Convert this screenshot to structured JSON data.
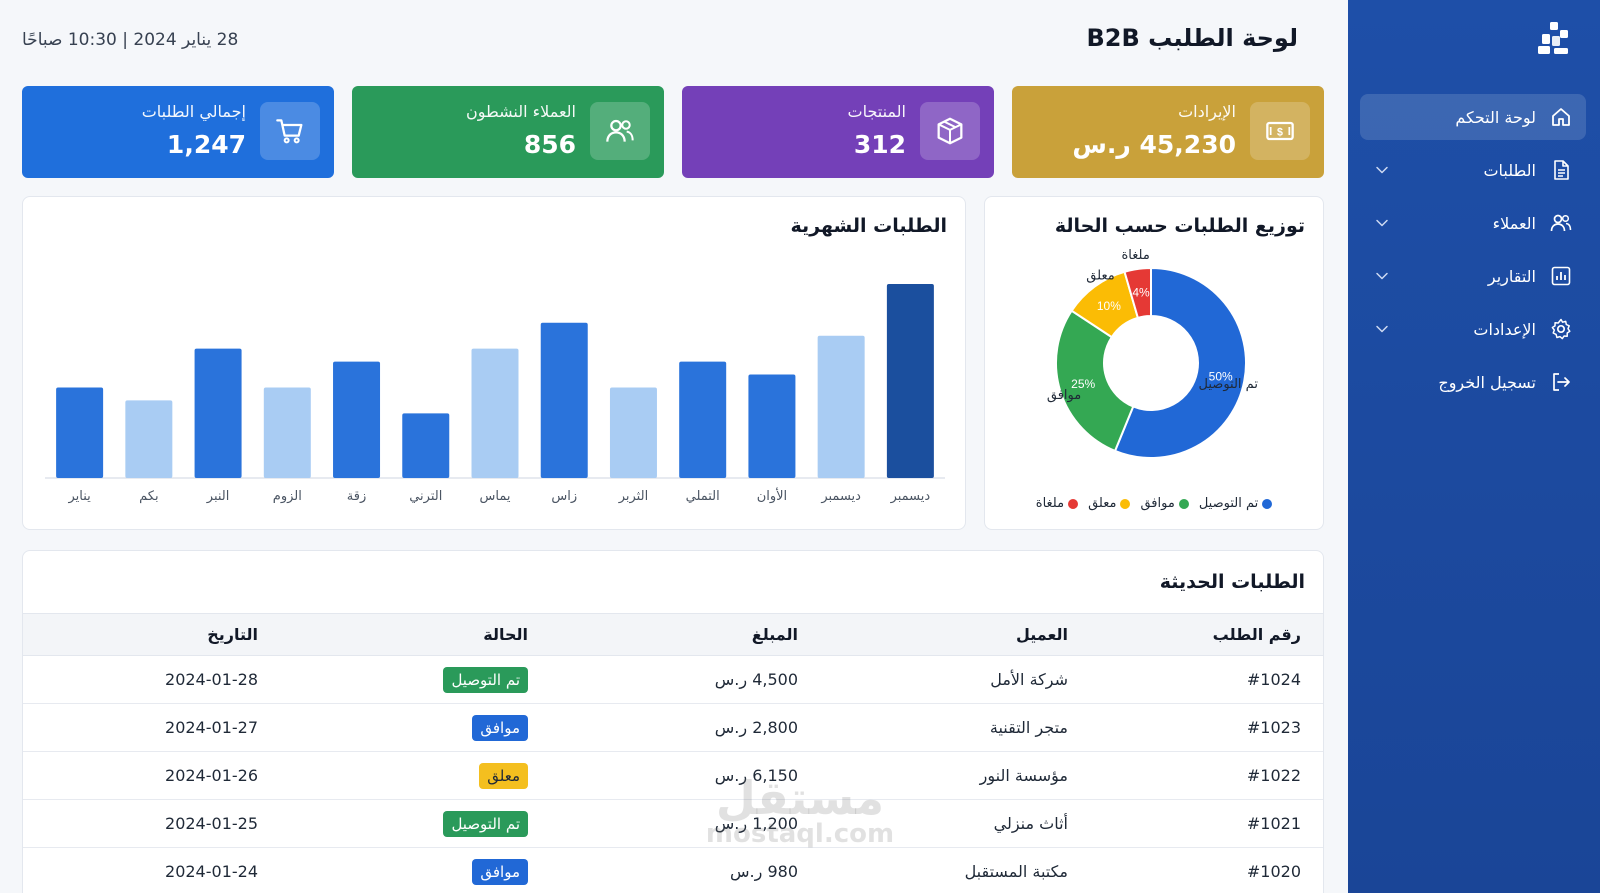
{
  "header": {
    "title": "لوحة الطلبب B2B",
    "datetime": "28 يناير 2024 | 10:30 صباحًا"
  },
  "sidebar": {
    "items": [
      {
        "label": "لوحة التحكم",
        "icon": "home-icon",
        "active": true,
        "chevron": false
      },
      {
        "label": "الطلبات",
        "icon": "document-icon",
        "active": false,
        "chevron": true
      },
      {
        "label": "العملاء",
        "icon": "users-icon",
        "active": false,
        "chevron": true
      },
      {
        "label": "التقارير",
        "icon": "bar-chart-icon",
        "active": false,
        "chevron": true
      },
      {
        "label": "الإعدادات",
        "icon": "gear-icon",
        "active": false,
        "chevron": true
      },
      {
        "label": "تسجيل الخروج",
        "icon": "logout-icon",
        "active": false,
        "chevron": false
      }
    ]
  },
  "stats": [
    {
      "label": "الإيرادات",
      "value": "45,230 ر.س",
      "icon": "money-icon",
      "color": "#c9a13a"
    },
    {
      "label": "المنتجات",
      "value": "312",
      "icon": "box-icon",
      "color": "#7440b8"
    },
    {
      "label": "العملاء النشطون",
      "value": "856",
      "icon": "users-icon",
      "color": "#2a9a5a"
    },
    {
      "label": "إجمالي الطلبات",
      "value": "1,247",
      "icon": "cart-icon",
      "color": "#1f6fdc"
    }
  ],
  "pie_panel": {
    "title": "توزيع الطلبات حسب الحالة",
    "legend": [
      {
        "label": "تم التوصيل",
        "color": "#2168d6"
      },
      {
        "label": "موافق",
        "color": "#34a853"
      },
      {
        "label": "معلق",
        "color": "#fbbc05"
      },
      {
        "label": "ملغاة",
        "color": "#e53935"
      }
    ]
  },
  "bar_panel": {
    "title": "الطلبات الشهرية"
  },
  "chart_data": [
    {
      "type": "pie",
      "title": "توزيع الطلبات حسب الحالة",
      "slices": [
        {
          "label": "تم التوصيل",
          "value": 50,
          "display": "50%",
          "color": "#2168d6"
        },
        {
          "label": "موافق",
          "value": 25,
          "display": "25%",
          "color": "#34a853"
        },
        {
          "label": "معلق",
          "value": 10,
          "display": "10%",
          "color": "#fbbc05"
        },
        {
          "label": "ملغاة",
          "value": 4,
          "display": "4%",
          "color": "#e53935"
        }
      ],
      "donut": true,
      "legend_position": "bottom"
    },
    {
      "type": "bar",
      "title": "الطلبات الشهرية",
      "categories": [
        "يناير",
        "بكم",
        "النبر",
        "الزوم",
        "زقة",
        "الترني",
        "يماس",
        "زاس",
        "الثربر",
        "التملي",
        "الأوان",
        "ديسمبر",
        "ديسمبر"
      ],
      "values": [
        70,
        60,
        100,
        70,
        90,
        50,
        100,
        120,
        70,
        90,
        80,
        110,
        150
      ],
      "colors": [
        "#2a73db",
        "#a9ccf3",
        "#2a73db",
        "#a9ccf3",
        "#2a73db",
        "#2a73db",
        "#a9ccf3",
        "#2a73db",
        "#a9ccf3",
        "#2a73db",
        "#2a73db",
        "#a9ccf3",
        "#1b4f9e"
      ],
      "ylim": [
        0,
        160
      ],
      "grid": false
    }
  ],
  "recent": {
    "title": "الطلبات الحديثة",
    "columns": [
      "رقم الطلب",
      "العميل",
      "المبلغ",
      "الحالة",
      "التاريخ"
    ],
    "rows": [
      {
        "id": "#1024",
        "client": "شركة الأمل",
        "amount": "4,500 ر.س",
        "status": "تم التوصيل",
        "status_color": "#2a9a5a",
        "status_text_color": "#ffffff",
        "date": "2024-01-28"
      },
      {
        "id": "#1023",
        "client": "متجر التقنية",
        "amount": "2,800 ر.س",
        "status": "موافق",
        "status_color": "#2168d6",
        "status_text_color": "#ffffff",
        "date": "2024-01-27"
      },
      {
        "id": "#1022",
        "client": "مؤسسة النور",
        "amount": "6,150 ر.س",
        "status": "معلق",
        "status_color": "#f4bf1f",
        "status_text_color": "#1f2937",
        "date": "2024-01-26"
      },
      {
        "id": "#1021",
        "client": "أثاث منزلي",
        "amount": "1,200 ر.س",
        "status": "تم التوصيل",
        "status_color": "#2a9a5a",
        "status_text_color": "#ffffff",
        "date": "2024-01-25"
      },
      {
        "id": "#1020",
        "client": "مكتبة المستقبل",
        "amount": "980 ر.س",
        "status": "موافق",
        "status_color": "#2168d6",
        "status_text_color": "#ffffff",
        "date": "2024-01-24"
      }
    ]
  },
  "watermark": {
    "line1": "مستقل",
    "line2": "mostaql.com"
  }
}
